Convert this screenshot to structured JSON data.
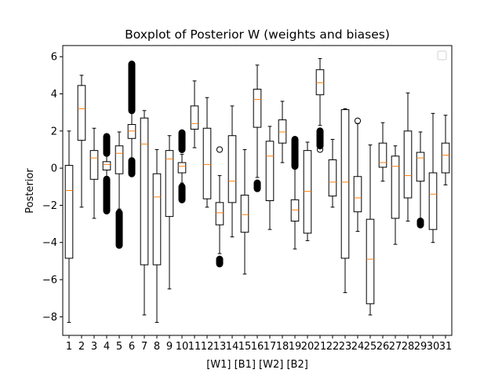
{
  "chart_data": {
    "type": "boxplot",
    "title": "Boxplot of Posterior W (weights and biases)",
    "xlabel": "[W1] [B1] [W2] [B2]",
    "ylabel": "Posterior",
    "categories": [
      "1",
      "2",
      "3",
      "4",
      "5",
      "6",
      "7",
      "8",
      "9",
      "10",
      "11",
      "12",
      "13",
      "14",
      "15",
      "16",
      "17",
      "18",
      "19",
      "20",
      "21",
      "22",
      "23",
      "24",
      "25",
      "26",
      "27",
      "28",
      "29",
      "30",
      "31"
    ],
    "ylim": [
      -9.0,
      6.6
    ],
    "yticks": [
      -8,
      -6,
      -4,
      -2,
      0,
      2,
      4,
      6
    ],
    "legend": "top-right (empty)",
    "grid": false,
    "colors": {
      "box": "#000000",
      "median": "#ff7f0e",
      "background": "#ffffff"
    },
    "boxes": [
      {
        "label": "1",
        "whislo": -8.3,
        "q1": -4.85,
        "med": -1.2,
        "q3": 0.15,
        "whishi": 2.0,
        "fliers": []
      },
      {
        "label": "2",
        "whislo": -2.1,
        "q1": 1.5,
        "med": 3.2,
        "q3": 4.45,
        "whishi": 5.0,
        "fliers": []
      },
      {
        "label": "3",
        "whislo": -2.7,
        "q1": -0.6,
        "med": 0.55,
        "q3": 0.95,
        "whishi": 2.15,
        "fliers": []
      },
      {
        "label": "4",
        "whislo": -0.45,
        "q1": -0.1,
        "med": 0.2,
        "q3": 0.35,
        "whishi": 0.75,
        "flier_bands": [
          [
            -2.3,
            -0.6
          ],
          [
            0.8,
            1.7
          ]
        ]
      },
      {
        "label": "5",
        "whislo": -2.2,
        "q1": -0.3,
        "med": 0.8,
        "q3": 1.2,
        "whishi": 1.95,
        "flier_bands": [
          [
            -4.15,
            -2.4
          ]
        ]
      },
      {
        "label": "6",
        "whislo": 0.55,
        "q1": 1.6,
        "med": 2.0,
        "q3": 2.35,
        "whishi": 3.0,
        "flier_bands": [
          [
            -0.3,
            0.4
          ],
          [
            3.1,
            5.6
          ]
        ]
      },
      {
        "label": "7",
        "whislo": -7.9,
        "q1": -5.2,
        "med": 1.3,
        "q3": 2.7,
        "whishi": 3.1,
        "fliers": []
      },
      {
        "label": "8",
        "whislo": -8.3,
        "q1": -5.2,
        "med": -1.55,
        "q3": -0.3,
        "whishi": 1.0,
        "fliers": []
      },
      {
        "label": "9",
        "whislo": -6.5,
        "q1": -2.6,
        "med": 0.5,
        "q3": 0.95,
        "whishi": 1.75,
        "fliers": []
      },
      {
        "label": "10",
        "whislo": -0.8,
        "q1": -0.25,
        "med": 0.1,
        "q3": 0.3,
        "whishi": 0.75,
        "flier_bands": [
          [
            -1.7,
            -1.0
          ],
          [
            1.0,
            1.9
          ]
        ]
      },
      {
        "label": "11",
        "whislo": 1.1,
        "q1": 2.1,
        "med": 2.4,
        "q3": 3.35,
        "whishi": 4.7,
        "fliers": []
      },
      {
        "label": "12",
        "whislo": -2.1,
        "q1": -1.65,
        "med": 0.2,
        "q3": 2.15,
        "whishi": 3.8,
        "fliers": []
      },
      {
        "label": "13",
        "whislo": -4.6,
        "q1": -3.05,
        "med": -2.4,
        "q3": -1.85,
        "whishi": -0.4,
        "fliers": [
          1.0
        ],
        "flier_bands": [
          [
            -5.15,
            -4.9
          ]
        ]
      },
      {
        "label": "14",
        "whislo": -3.7,
        "q1": -1.85,
        "med": -0.7,
        "q3": 1.75,
        "whishi": 3.35,
        "fliers": []
      },
      {
        "label": "15",
        "whislo": -5.7,
        "q1": -3.45,
        "med": -2.5,
        "q3": -1.45,
        "whishi": 1.0,
        "fliers": []
      },
      {
        "label": "16",
        "whislo": -0.5,
        "q1": 2.2,
        "med": 3.7,
        "q3": 4.25,
        "whishi": 5.55,
        "flier_bands": [
          [
            -1.1,
            -0.8
          ]
        ]
      },
      {
        "label": "17",
        "whislo": -3.3,
        "q1": -1.75,
        "med": 0.65,
        "q3": 1.45,
        "whishi": 2.25,
        "fliers": []
      },
      {
        "label": "18",
        "whislo": 0.3,
        "q1": 1.35,
        "med": 1.95,
        "q3": 2.6,
        "whishi": 3.6,
        "fliers": []
      },
      {
        "label": "19",
        "whislo": -4.35,
        "q1": -2.85,
        "med": -2.25,
        "q3": -1.7,
        "whishi": 0.0,
        "flier_bands": [
          [
            0.1,
            1.55
          ]
        ]
      },
      {
        "label": "20",
        "whislo": -3.9,
        "q1": -3.5,
        "med": -1.25,
        "q3": 0.95,
        "whishi": 1.4,
        "fliers": []
      },
      {
        "label": "21",
        "whislo": 2.3,
        "q1": 3.95,
        "med": 4.6,
        "q3": 5.3,
        "whishi": 5.9,
        "fliers": [
          1.0
        ],
        "flier_bands": [
          [
            1.2,
            2.0
          ]
        ]
      },
      {
        "label": "22",
        "whislo": -2.1,
        "q1": -1.5,
        "med": -0.75,
        "q3": 0.45,
        "whishi": 1.55,
        "fliers": []
      },
      {
        "label": "23",
        "whislo": -6.7,
        "q1": -4.85,
        "med": -0.75,
        "q3": 3.15,
        "whishi": 3.2,
        "fliers": []
      },
      {
        "label": "24",
        "whislo": -3.4,
        "q1": -2.35,
        "med": -1.6,
        "q3": -0.45,
        "whishi": 2.4,
        "fliers": [
          2.55
        ]
      },
      {
        "label": "25",
        "whislo": -7.9,
        "q1": -7.3,
        "med": -4.9,
        "q3": -2.75,
        "whishi": 1.25,
        "fliers": []
      },
      {
        "label": "26",
        "whislo": -0.7,
        "q1": 0.05,
        "med": 0.3,
        "q3": 1.35,
        "whishi": 2.45,
        "fliers": []
      },
      {
        "label": "27",
        "whislo": -4.1,
        "q1": -2.7,
        "med": 0.1,
        "q3": 0.65,
        "whishi": 1.2,
        "fliers": []
      },
      {
        "label": "28",
        "whislo": -2.85,
        "q1": -1.6,
        "med": -0.4,
        "q3": 2.0,
        "whishi": 4.05,
        "fliers": []
      },
      {
        "label": "29",
        "whislo": -2.8,
        "q1": -0.7,
        "med": 0.55,
        "q3": 0.85,
        "whishi": 1.95,
        "flier_bands": [
          [
            -3.05,
            -2.85
          ]
        ]
      },
      {
        "label": "30",
        "whislo": -4.0,
        "q1": -3.3,
        "med": -1.4,
        "q3": -0.25,
        "whishi": 2.95,
        "fliers": []
      },
      {
        "label": "31",
        "whislo": -0.9,
        "q1": -0.25,
        "med": 0.7,
        "q3": 1.35,
        "whishi": 2.85,
        "fliers": []
      }
    ]
  }
}
